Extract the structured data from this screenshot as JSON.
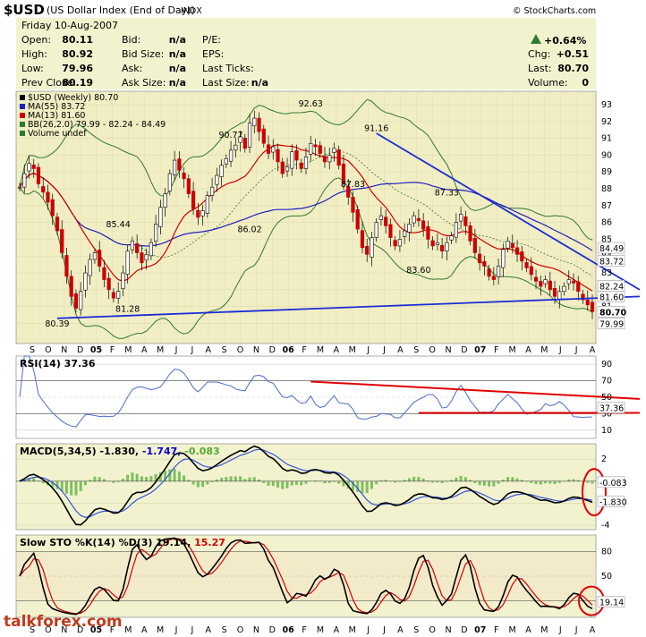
{
  "header": {
    "symbol": "$USD",
    "name": "(US Dollar Index (End of Day))",
    "exchange": "INDX",
    "copyright": "© StockCharts.com",
    "date": "Friday  10-Aug-2007",
    "change_pct": "+0.64%",
    "quote_labels": [
      "Open:",
      "High:",
      "Low:",
      "Prev Close:"
    ],
    "quote_values": [
      "80.11",
      "80.92",
      "79.96",
      "80.19"
    ],
    "bid_labels": [
      "Bid:",
      "Bid Size:",
      "Ask:",
      "Ask Size:"
    ],
    "bid_values": [
      "n/a",
      "n/a",
      "n/a",
      "n/a"
    ],
    "pe_labels": [
      "P/E:",
      "EPS:",
      "Last Ticks:",
      "Last Size:"
    ],
    "pe_values": [
      "",
      "",
      "",
      "n/a"
    ],
    "chg_labels": [
      "Chg:",
      "Last:",
      "Volume:"
    ],
    "chg_values": [
      "+0.51",
      "80.70",
      "0"
    ]
  },
  "colors": {
    "panel_bg": "#f2f2cf",
    "price_bg": "#f2eec4",
    "up_arrow": "#2e7d32",
    "candle": "#cc0000",
    "ma55": "#1f1fbf",
    "ma13": "#d40000",
    "bollinger": "#2d7a2d",
    "trendline": "#1a2dd6",
    "annot_red": "#e00000"
  },
  "watermark": "talkforex.com",
  "chart_data": [
    {
      "type": "candlestick",
      "panel": "price",
      "legend": [
        "$USD (Weekly) 80.70",
        "MA(55) 83.72",
        "MA(13) 81.60",
        "BB(26,2.0) 79.99 - 82.24 - 84.49",
        "Volume undef"
      ],
      "ylim": [
        78.8,
        93.8
      ],
      "y_ticks": [
        80,
        81,
        82,
        83,
        84,
        85,
        86,
        87,
        88,
        89,
        90,
        91,
        92,
        93
      ],
      "x_ticks": [
        "S",
        "O",
        "N",
        "D",
        "05",
        "F",
        "M",
        "A",
        "M",
        "J",
        "J",
        "A",
        "S",
        "O",
        "N",
        "D",
        "06",
        "F",
        "M",
        "A",
        "M",
        "J",
        "J",
        "A",
        "S",
        "O",
        "N",
        "D",
        "07",
        "F",
        "M",
        "A",
        "M",
        "J",
        "J",
        "A"
      ],
      "bold_ticks": [
        "05",
        "06",
        "07"
      ],
      "pivot_labels": [
        {
          "week": 8,
          "value": 80.39,
          "label": "80.39"
        },
        {
          "week": 23,
          "value": 81.28,
          "label": "81.28"
        },
        {
          "week": 21,
          "value": 85.44,
          "label": "85.44"
        },
        {
          "week": 45,
          "value": 90.77,
          "label": "90.77"
        },
        {
          "week": 49,
          "value": 86.02,
          "label": "86.02"
        },
        {
          "week": 62,
          "value": 92.63,
          "label": "92.63"
        },
        {
          "week": 71,
          "value": 87.83,
          "label": "87.83"
        },
        {
          "week": 76,
          "value": 91.16,
          "label": "91.16"
        },
        {
          "week": 85,
          "value": 83.6,
          "label": "83.60"
        },
        {
          "week": 91,
          "value": 87.33,
          "label": "87.33"
        }
      ],
      "right_labels": [
        {
          "value": 84.49,
          "label": "84.49"
        },
        {
          "value": 83.72,
          "label": "83.72"
        },
        {
          "value": 82.24,
          "label": "82.24"
        },
        {
          "value": 81.6,
          "label": "81.60"
        },
        {
          "value": 80.7,
          "label": "80.70"
        },
        {
          "value": 79.99,
          "label": "79.99"
        }
      ],
      "close": [
        88.1,
        88.9,
        89.5,
        89.2,
        88.3,
        87.8,
        87.2,
        86.4,
        85.5,
        84.2,
        82.8,
        81.6,
        80.9,
        81.9,
        83.0,
        83.8,
        84.2,
        83.4,
        82.6,
        82.0,
        81.5,
        81.9,
        83.0,
        84.3,
        84.9,
        84.2,
        83.6,
        84.1,
        84.8,
        85.9,
        86.9,
        87.7,
        88.9,
        89.7,
        89.1,
        88.6,
        87.7,
        86.8,
        86.3,
        86.7,
        87.6,
        88.1,
        88.8,
        89.4,
        89.8,
        90.3,
        90.6,
        91.1,
        90.4,
        91.9,
        92.2,
        91.4,
        90.7,
        90.1,
        90.5,
        89.6,
        88.9,
        89.3,
        90.2,
        89.7,
        89.2,
        89.9,
        90.7,
        90.5,
        90.1,
        89.6,
        90.0,
        90.4,
        89.4,
        88.3,
        87.5,
        86.6,
        85.6,
        84.5,
        84.1,
        85.1,
        86.0,
        86.4,
        85.8,
        85.1,
        84.6,
        85.0,
        85.5,
        85.9,
        86.4,
        86.1,
        85.6,
        85.0,
        84.6,
        84.8,
        84.3,
        84.8,
        85.2,
        86.0,
        86.5,
        85.8,
        84.9,
        84.2,
        83.6,
        83.4,
        82.8,
        82.6,
        83.4,
        84.4,
        84.9,
        84.5,
        84.1,
        83.7,
        83.3,
        82.9,
        82.5,
        82.2,
        82.6,
        82.0,
        81.6,
        81.9,
        82.2,
        82.6,
        82.4,
        81.9,
        81.4,
        81.1,
        80.7
      ],
      "comment_close": "weekly closes Sep 2004 - Aug 2007 (estimated)"
    },
    {
      "type": "line",
      "panel": "RSI",
      "legend": "RSI(14) 37.36",
      "ylim": [
        0,
        100
      ],
      "y_ticks": [
        10,
        30,
        50,
        70,
        90
      ],
      "last_label": "37.36"
    },
    {
      "type": "line",
      "panel": "MACD",
      "legend": "MACD(5,34,5) -1.830, -1.747, -0.083",
      "legend_parts": [
        "MACD(5,34,5) -1.830,",
        "-1.747,",
        "-0.083"
      ],
      "ylim": [
        -4.4,
        3.4
      ],
      "y_ticks": [
        -4,
        -2,
        0,
        2
      ],
      "right_labels": [
        {
          "value": -0.083,
          "label": "-0.083"
        },
        {
          "value": -1.83,
          "label": "-1.830"
        }
      ]
    },
    {
      "type": "line",
      "panel": "Slow Stochastic",
      "legend": "Slow STO %K(14) %D(3) 19.14, 15.27",
      "legend_parts": [
        "Slow STO %K(14) %D(3) 19.14,",
        "15.27"
      ],
      "ylim": [
        0,
        100
      ],
      "y_ticks": [
        20,
        50,
        80
      ],
      "last_label": "19.14"
    }
  ]
}
